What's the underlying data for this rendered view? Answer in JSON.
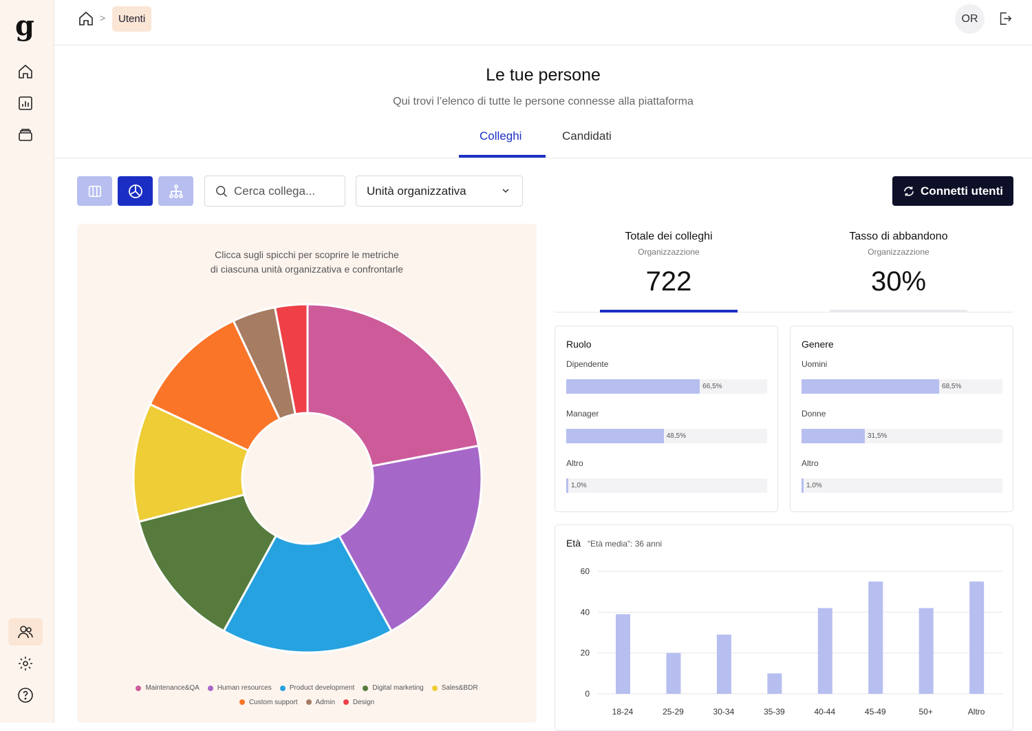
{
  "brand": {
    "logo": "g",
    "accent": "#1b2ec4",
    "soft_accent": "#b7bef0",
    "sidebar_bg": "#fdf4ee"
  },
  "sidebar": {
    "top_items": [
      {
        "icon": "home-icon",
        "name": "sidebar-item-home"
      },
      {
        "icon": "bar-chart-icon",
        "name": "sidebar-item-reports"
      },
      {
        "icon": "stack-icon",
        "name": "sidebar-item-inbox"
      }
    ],
    "bottom_items": [
      {
        "icon": "users-icon",
        "name": "sidebar-item-users",
        "active": true
      },
      {
        "icon": "gear-icon",
        "name": "sidebar-item-settings"
      },
      {
        "icon": "help-icon",
        "name": "sidebar-item-help"
      }
    ]
  },
  "header": {
    "breadcrumb": {
      "home_icon": "home-icon",
      "separator": ">",
      "current": "Utenti"
    },
    "avatar_initials": "OR",
    "logout_icon": "logout-icon"
  },
  "page": {
    "title": "Le tue persone",
    "subtitle": "Qui trovi l’elenco di tutte le persone connesse alla piattaforma",
    "tabs": [
      {
        "label": "Colleghi",
        "active": true
      },
      {
        "label": "Candidati",
        "active": false
      }
    ]
  },
  "toolbar": {
    "view_buttons": [
      {
        "icon": "columns-icon",
        "active": false
      },
      {
        "icon": "pie-chart-icon",
        "active": true
      },
      {
        "icon": "org-chart-icon",
        "active": false
      }
    ],
    "search_placeholder": "Cerca collega...",
    "select_value": "Unità organizzativa",
    "connect_label": "Connetti utenti",
    "connect_icon": "refresh-icon"
  },
  "chart_data": [
    {
      "type": "pie",
      "title": "",
      "hint_line1": "Clicca sugli spicchi per scoprire le metriche",
      "hint_line2": "di ciascuna unità organizzativa e confrontarle",
      "slices": [
        {
          "label": "Maintenance&QA",
          "value": 22,
          "color": "#cd5b9a"
        },
        {
          "label": "Human resources",
          "value": 20,
          "color": "#a668c8"
        },
        {
          "label": "Product development",
          "value": 16,
          "color": "#27a2e0"
        },
        {
          "label": "Digital marketing",
          "value": 13,
          "color": "#567b3d"
        },
        {
          "label": "Sales&BDR",
          "value": 11,
          "color": "#eecd36"
        },
        {
          "label": "Custom support",
          "value": 11,
          "color": "#fb7529"
        },
        {
          "label": "Admin",
          "value": 4,
          "color": "#a67c62"
        },
        {
          "label": "Design",
          "value": 3,
          "color": "#ef4047"
        }
      ]
    },
    {
      "type": "bar",
      "title": "Età",
      "note": "“Età media”: 36 anni",
      "categories": [
        "18-24",
        "25-29",
        "30-34",
        "35-39",
        "40-44",
        "45-49",
        "50+",
        "Altro"
      ],
      "values": [
        39,
        20,
        29,
        10,
        42,
        55,
        42,
        55
      ],
      "ylim": [
        0,
        60
      ],
      "yticks": [
        "60",
        "40",
        "20",
        "0"
      ],
      "grid": true,
      "color": "#b7bef0"
    }
  ],
  "stats": [
    {
      "title": "Totale dei colleghi",
      "sub": "Organizzazzione",
      "value": "722",
      "active": true
    },
    {
      "title": "Tasso di abbandono",
      "sub": "Organizzazzione",
      "value": "30%",
      "active": false
    }
  ],
  "role_card": {
    "title": "Ruolo",
    "bars": [
      {
        "label": "Dipendente",
        "value": 66.5,
        "text": "66,5%"
      },
      {
        "label": "Manager",
        "value": 48.5,
        "text": "48,5%"
      },
      {
        "label": "Altro",
        "value": 1.0,
        "text": "1,0%"
      }
    ]
  },
  "gender_card": {
    "title": "Genere",
    "bars": [
      {
        "label": "Uomini",
        "value": 68.5,
        "text": "68,5%"
      },
      {
        "label": "Donne",
        "value": 31.5,
        "text": "31,5%"
      },
      {
        "label": "Altro",
        "value": 1.0,
        "text": "1,0%"
      }
    ]
  }
}
